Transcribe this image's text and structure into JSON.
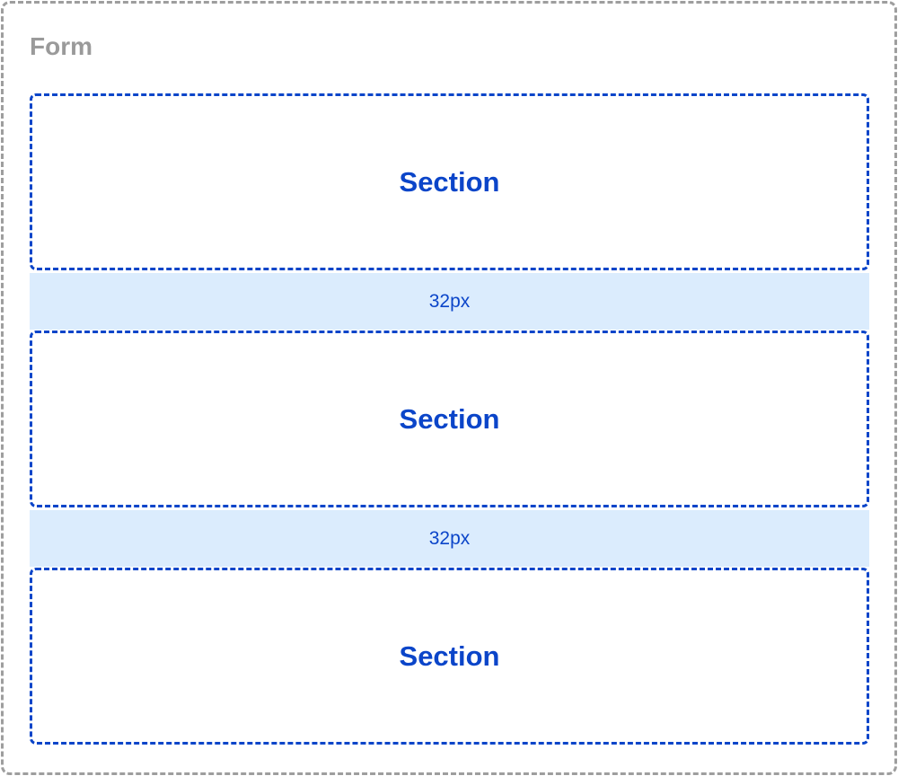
{
  "form": {
    "label": "Form"
  },
  "sections": [
    {
      "label": "Section"
    },
    {
      "label": "Section"
    },
    {
      "label": "Section"
    }
  ],
  "gaps": [
    {
      "label": "32px"
    },
    {
      "label": "32px"
    }
  ],
  "colors": {
    "form_border": "#9e9e9e",
    "section": "#0b45c9",
    "gap_fill": "#dbecfd"
  }
}
